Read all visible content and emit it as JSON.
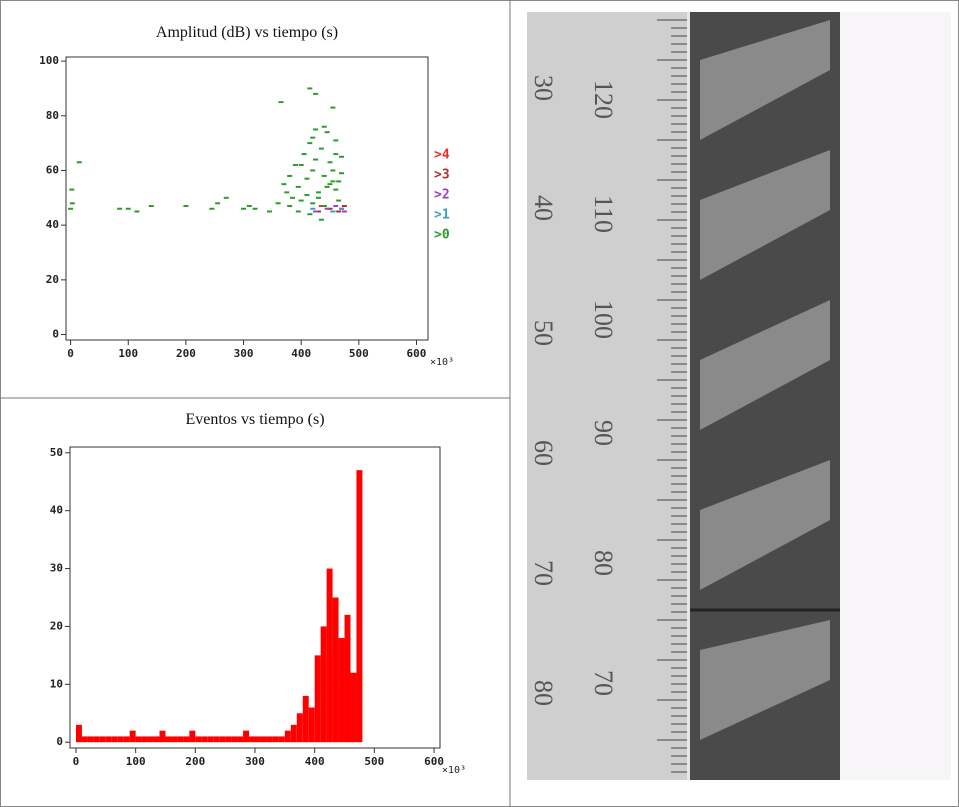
{
  "chart_data": [
    {
      "type": "scatter",
      "title": "Amplitud (dB) vs tiempo (s)",
      "x_multiplier": "×10³",
      "xlim": [
        -8,
        620
      ],
      "ylim": [
        -2,
        101.5
      ],
      "xticks": [
        0,
        100,
        200,
        300,
        400,
        500,
        600
      ],
      "yticks": [
        0,
        20,
        40,
        60,
        80,
        100
      ],
      "series": [
        {
          "name": ">4",
          "color": "#e03030",
          "x": [
            435,
            455,
            470
          ],
          "values": [
            47,
            45,
            46
          ]
        },
        {
          "name": ">3",
          "color": "#b03030",
          "x": [
            430,
            450,
            465,
            475
          ],
          "values": [
            45,
            46,
            45,
            47
          ]
        },
        {
          "name": ">2",
          "color": "#a040c0",
          "x": [
            425,
            445,
            460,
            475
          ],
          "values": [
            45,
            46,
            47,
            45
          ]
        },
        {
          "name": ">1",
          "color": "#3aa0c0",
          "x": [
            420,
            440,
            455,
            470
          ],
          "values": [
            46,
            47,
            45,
            46
          ]
        },
        {
          "name": ">0",
          "color": "#2a9d2a",
          "x": [
            0,
            2,
            3,
            15,
            85,
            100,
            115,
            140,
            200,
            245,
            255,
            270,
            300,
            310,
            320,
            345,
            360,
            370,
            375,
            380,
            385,
            390,
            395,
            400,
            405,
            410,
            415,
            420,
            425,
            430,
            435,
            440,
            445,
            450,
            455,
            460,
            465,
            470,
            380,
            395,
            410,
            420,
            430,
            440,
            450,
            460,
            470,
            400,
            420,
            440,
            460,
            415,
            435,
            455,
            425,
            445,
            465,
            365,
            415,
            425,
            455
          ],
          "values": [
            46,
            53,
            48,
            63,
            46,
            46,
            45,
            47,
            47,
            46,
            48,
            50,
            46,
            47,
            46,
            45,
            48,
            55,
            52,
            58,
            50,
            62,
            54,
            49,
            66,
            57,
            70,
            60,
            75,
            52,
            68,
            58,
            74,
            63,
            56,
            71,
            49,
            65,
            47,
            45,
            51,
            48,
            50,
            47,
            55,
            53,
            59,
            62,
            72,
            76,
            66,
            44,
            42,
            60,
            64,
            54,
            56,
            85,
            90,
            88,
            83
          ]
        }
      ]
    },
    {
      "type": "histogram",
      "title": "Eventos vs tiempo (s)",
      "x_multiplier": "×10³",
      "color": "#ff0000",
      "xlim": [
        -10,
        610
      ],
      "ylim": [
        -1,
        51
      ],
      "xticks": [
        0,
        100,
        200,
        300,
        400,
        500,
        600
      ],
      "yticks": [
        0,
        10,
        20,
        30,
        40,
        50
      ],
      "bins": [
        0,
        10,
        20,
        30,
        40,
        50,
        60,
        70,
        80,
        90,
        100,
        110,
        120,
        130,
        140,
        150,
        160,
        170,
        180,
        190,
        200,
        210,
        220,
        230,
        240,
        250,
        260,
        270,
        280,
        290,
        300,
        310,
        320,
        330,
        340,
        350,
        360,
        370,
        380,
        390,
        400,
        410,
        420,
        430,
        440,
        450,
        460,
        470,
        480
      ],
      "counts": [
        3,
        1,
        1,
        1,
        1,
        1,
        1,
        1,
        1,
        2,
        1,
        1,
        1,
        1,
        2,
        1,
        1,
        1,
        1,
        2,
        1,
        1,
        1,
        1,
        1,
        1,
        1,
        1,
        2,
        1,
        1,
        1,
        1,
        1,
        1,
        2,
        3,
        5,
        8,
        6,
        15,
        20,
        30,
        25,
        18,
        22,
        12,
        47
      ]
    }
  ],
  "photo": {
    "left_labels": [
      "30",
      "40",
      "50",
      "60",
      "70",
      "80"
    ],
    "right_labels": [
      "120",
      "110",
      "100",
      "90",
      "80",
      "70"
    ]
  }
}
